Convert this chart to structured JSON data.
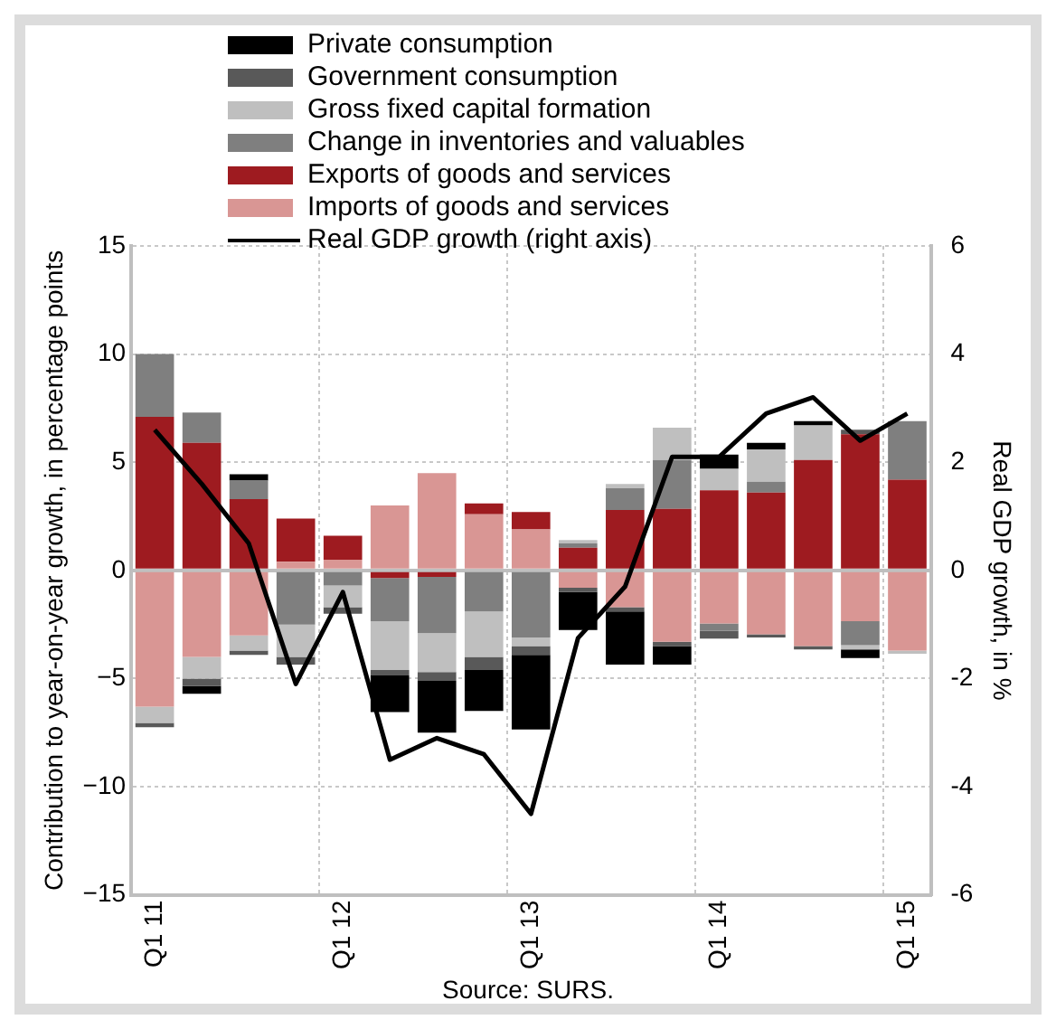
{
  "chart_data": {
    "type": "bar",
    "stacked": true,
    "categories": [
      "Q1 11",
      null,
      null,
      null,
      "Q1 12",
      null,
      null,
      null,
      "Q1 13",
      null,
      null,
      null,
      "Q1 14",
      null,
      null,
      null,
      "Q1 15"
    ],
    "ylabel": "Contribution to year-on-year growth, in percentage points",
    "y2label": "Real GDP growth, in %",
    "ylim": [
      -15,
      15
    ],
    "yticks": [
      {
        "value": -15,
        "label": "−15"
      },
      {
        "value": -10,
        "label": "−10"
      },
      {
        "value": -5,
        "label": "−5"
      },
      0,
      5,
      10,
      15
    ],
    "y2lim": [
      -6,
      6
    ],
    "y2ticks": [
      -6,
      -4,
      -2,
      0,
      2,
      4,
      6
    ],
    "grid": true,
    "legend": "top",
    "marker": "none",
    "annotations": [
      "Source: SURS."
    ],
    "series": [
      {
        "name": "Imports of goods and services",
        "color": "#d99694",
        "values": [
          -6.3,
          -4.0,
          -3.0,
          0.4,
          0.5,
          3.0,
          4.5,
          2.6,
          1.9,
          -0.8,
          -1.7,
          -3.3,
          -2.45,
          -2.95,
          -3.5,
          -2.35,
          -3.7
        ]
      },
      {
        "name": "Exports of goods and services",
        "color": "#9e1b20",
        "values": [
          7.1,
          5.9,
          3.3,
          2.0,
          1.1,
          -0.35,
          -0.3,
          0.5,
          0.8,
          1.05,
          2.8,
          2.85,
          3.7,
          3.6,
          5.1,
          6.3,
          4.2
        ]
      },
      {
        "name": "Change in inventories and valuables",
        "color": "#7f7f7f",
        "values": [
          2.9,
          1.4,
          0.85,
          -2.5,
          -0.7,
          -2.0,
          -2.6,
          -1.9,
          -3.1,
          0.2,
          1.0,
          2.25,
          -0.35,
          0.5,
          0,
          -1.1,
          2.7
        ]
      },
      {
        "name": "Gross fixed capital formation",
        "color": "#bfbfbf",
        "values": [
          -0.75,
          -1.0,
          -0.7,
          -1.5,
          -1.0,
          -2.25,
          -1.8,
          -2.1,
          -0.4,
          0.15,
          0.2,
          1.5,
          1.0,
          1.5,
          1.6,
          -0.2,
          -0.15
        ]
      },
      {
        "name": "Government consumption",
        "color": "#595959",
        "values": [
          -0.2,
          -0.35,
          -0.2,
          -0.35,
          -0.3,
          -0.25,
          -0.4,
          -0.6,
          -0.4,
          -0.2,
          -0.2,
          -0.2,
          -0.35,
          -0.15,
          -0.15,
          0.2,
          0
        ]
      },
      {
        "name": "Private consumption",
        "color": "#000000",
        "values": [
          0,
          -0.35,
          0.3,
          0,
          0,
          -1.7,
          -2.4,
          -1.9,
          -3.45,
          -1.75,
          -2.45,
          -0.85,
          0.65,
          0.3,
          0.2,
          -0.4,
          0
        ]
      },
      {
        "name": "Real GDP growth (right axis)",
        "type": "line",
        "axis": "y2",
        "color": "#000000",
        "values": [
          2.6,
          1.6,
          0.5,
          -2.1,
          -0.4,
          -3.5,
          -3.1,
          -3.4,
          -4.5,
          -1.25,
          -0.3,
          2.1,
          2.1,
          2.9,
          3.2,
          2.4,
          2.9
        ]
      }
    ]
  }
}
